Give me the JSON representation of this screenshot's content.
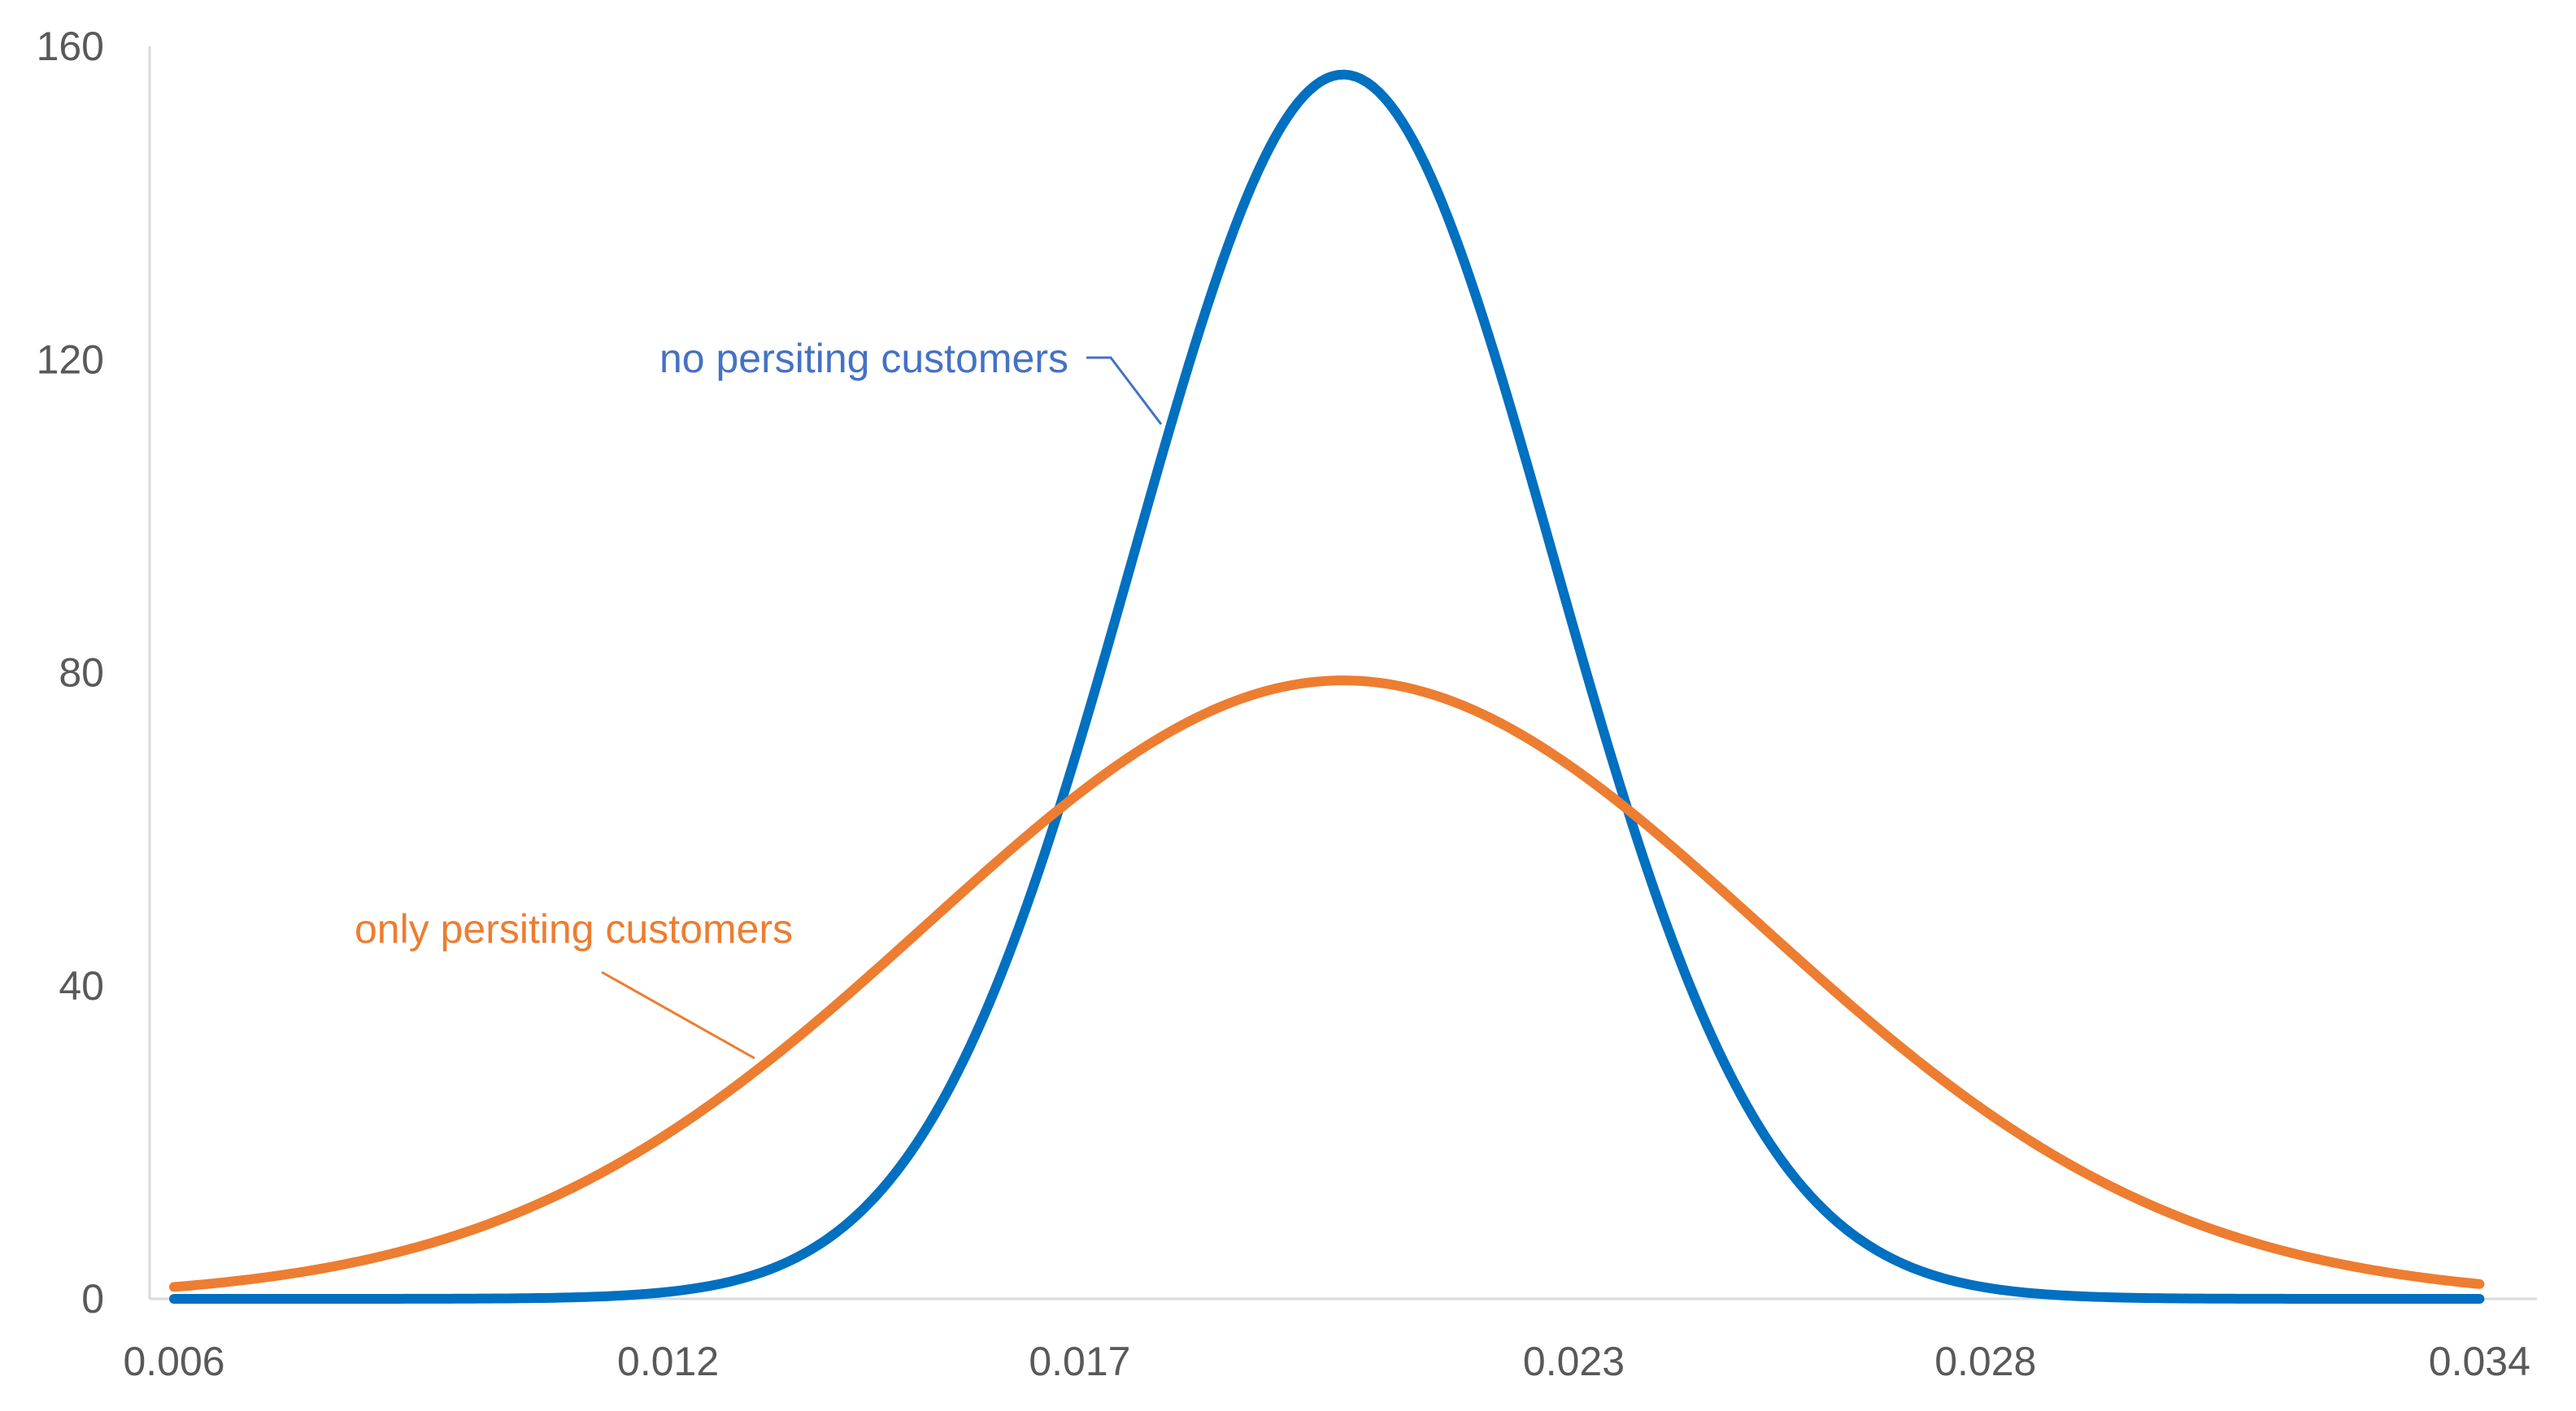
{
  "chart_data": {
    "type": "line",
    "title": "",
    "xlabel": "",
    "ylabel": "",
    "xlim": [
      0.006,
      0.0345
    ],
    "ylim": [
      0,
      160
    ],
    "x_ticks": [
      0.006,
      0.012,
      0.017,
      0.023,
      0.028,
      0.034
    ],
    "x_tick_labels": [
      "0.006",
      "0.012",
      "0.017",
      "0.023",
      "0.028",
      "0.034"
    ],
    "y_ticks": [
      0,
      40,
      80,
      120,
      160
    ],
    "y_tick_labels": [
      "0",
      "40",
      "80",
      "120",
      "160"
    ],
    "grid": false,
    "legend": "none",
    "series": [
      {
        "name": "no persiting customers",
        "color": "#0070C0",
        "distribution": "normal",
        "mean": 0.0202,
        "std": 0.00255,
        "x": [
          0.006,
          0.008,
          0.01,
          0.012,
          0.014,
          0.015,
          0.016,
          0.017,
          0.018,
          0.019,
          0.0202,
          0.021,
          0.022,
          0.023,
          0.024,
          0.025,
          0.026,
          0.028,
          0.03,
          0.032,
          0.034
        ],
        "y": [
          0.0,
          0.0,
          0.05,
          0.9,
          8.6,
          19.6,
          38.2,
          63.8,
          98.5,
          139.0,
          156.4,
          148.0,
          115.0,
          74.5,
          39.5,
          17.6,
          6.2,
          0.44,
          0.01,
          0.0,
          0.0
        ]
      },
      {
        "name": "only persiting customers",
        "color": "#ED7D31",
        "distribution": "normal",
        "mean": 0.0202,
        "std": 0.00505,
        "x": [
          0.006,
          0.008,
          0.01,
          0.012,
          0.014,
          0.016,
          0.017,
          0.018,
          0.019,
          0.0202,
          0.021,
          0.022,
          0.023,
          0.024,
          0.026,
          0.028,
          0.03,
          0.032,
          0.034
        ],
        "y": [
          1.5,
          4.5,
          10.9,
          21.2,
          37.2,
          55.2,
          63.9,
          71.4,
          76.7,
          79.0,
          78.0,
          74.2,
          67.9,
          59.5,
          40.1,
          23.2,
          11.9,
          5.2,
          1.9
        ]
      }
    ],
    "annotations": [
      {
        "text": "no persiting customers",
        "series": 0,
        "color": "#4472C4",
        "leader": true
      },
      {
        "text": "only persiting customers",
        "series": 1,
        "color": "#ED7D31",
        "leader": true
      }
    ]
  }
}
